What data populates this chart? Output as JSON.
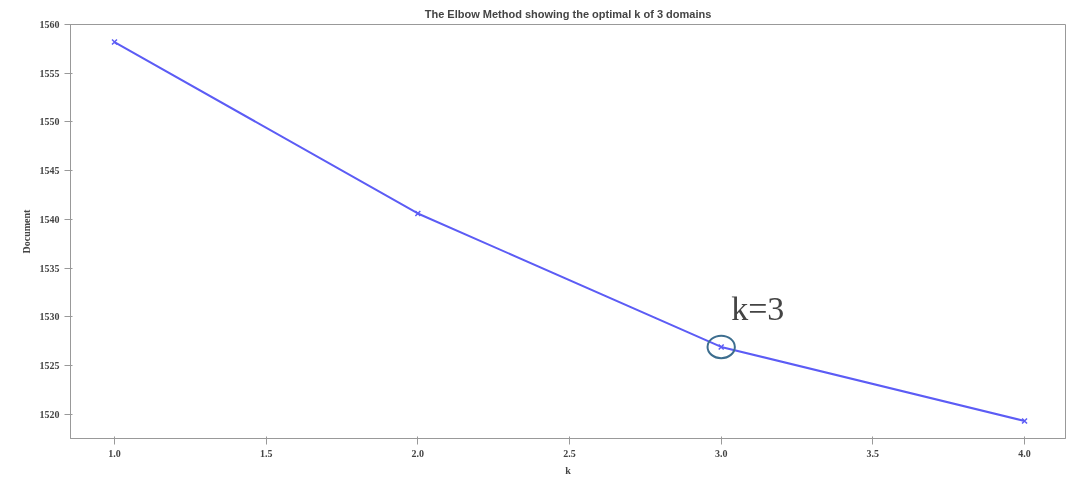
{
  "chart_data": {
    "type": "line",
    "title": "The Elbow Method showing the optimal k of 3 domains",
    "xlabel": "k",
    "ylabel": "Document",
    "x": [
      1,
      2,
      3,
      4
    ],
    "series": [
      {
        "color": "#5c5cf5",
        "values": [
          1558.2,
          1540.6,
          1526.9,
          1519.3
        ]
      }
    ],
    "xlim": [
      0.855,
      4.135
    ],
    "xticks": [
      {
        "value": 1,
        "label": "1.0"
      },
      {
        "value": 1.5,
        "label": "1.5"
      },
      {
        "value": 2,
        "label": "2.0"
      },
      {
        "value": 2.5,
        "label": "2.5"
      },
      {
        "value": 3,
        "label": "3.0"
      },
      {
        "value": 3.5,
        "label": "3.5"
      },
      {
        "value": 4,
        "label": "4.0"
      }
    ],
    "ylim": [
      1517.5,
      1560
    ],
    "yticks": [
      1520,
      1525,
      1530,
      1535,
      1540,
      1545,
      1550,
      1555,
      1560
    ],
    "annotations": [
      {
        "text": "k=3",
        "x": 3,
        "y": 1526.9
      }
    ],
    "marker": "cross",
    "grid": false
  }
}
